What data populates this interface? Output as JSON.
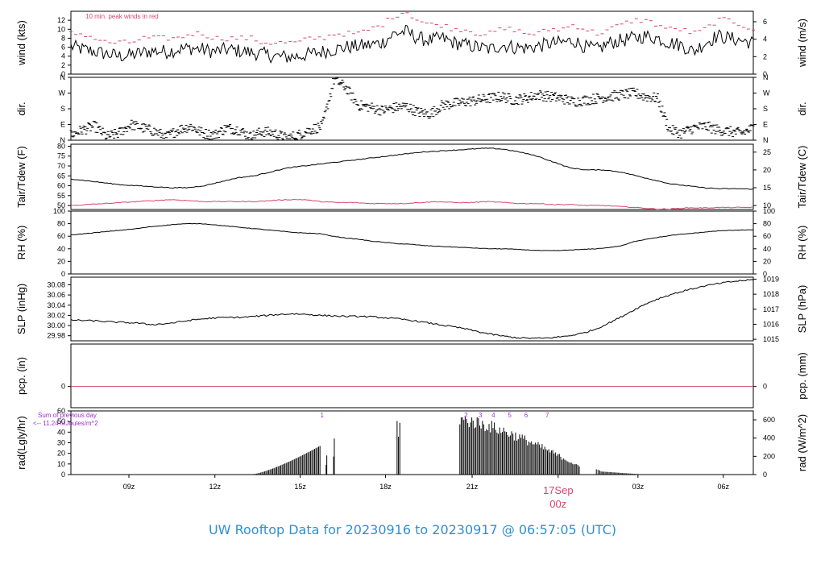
{
  "title": "UW Rooftop Data for 20230916  to  20230917 @ 06:57:05  (UTC)",
  "colors": {
    "line": "#000000",
    "red": "#d9456b",
    "purple": "#9b30d0",
    "title": "#2f8fd0"
  },
  "x_axis": {
    "ticks": [
      "09z",
      "12z",
      "15z",
      "18z",
      "21z",
      "00z",
      "03z",
      "06z"
    ],
    "date_label": "17Sep",
    "date_tick": "00z"
  },
  "chart_data": [
    {
      "type": "line",
      "name": "wind",
      "ylabel": "wind (kts)",
      "ylabel_right": "wind (m/s)",
      "yticks": [
        "0",
        "2",
        "4",
        "6",
        "8",
        "10",
        "12"
      ],
      "yticks_right": [
        "0",
        "2",
        "4",
        "6"
      ],
      "ylim": [
        0,
        14
      ],
      "annotation": "10 min. peak winds in red",
      "series": [
        {
          "values": [
            6.2,
            5.5,
            5.0,
            4.5,
            4.0,
            4.2,
            4.8,
            5.2,
            5.0,
            5.5,
            5.8,
            5.5,
            5.0,
            5.5,
            5.2,
            4.8,
            4.5,
            4.0,
            3.8,
            4.0,
            4.5,
            5.0,
            5.5,
            6.0,
            6.2,
            6.5,
            7.0,
            9.0,
            9.5,
            8.0,
            7.5,
            8.0,
            7.0,
            6.5,
            6.0,
            5.5,
            6.5,
            6.0,
            5.8,
            6.2,
            6.8,
            7.0,
            7.5,
            6.0,
            5.5,
            7.0,
            7.5,
            8.0,
            8.5,
            8.0,
            7.0,
            6.5,
            5.0,
            7.0,
            8.5,
            8.0,
            7.5,
            7.0
          ]
        },
        {
          "name": "10 min. peak winds",
          "values": [
            9,
            9,
            8,
            7,
            7,
            7,
            8,
            8,
            8,
            8,
            9,
            9,
            8,
            8,
            8,
            8,
            7,
            7,
            7,
            7,
            8,
            8,
            9,
            9,
            9,
            10,
            11,
            13,
            14,
            12,
            11,
            11,
            10,
            10,
            9,
            9,
            10,
            10,
            9,
            9,
            10,
            10,
            11,
            10,
            9,
            10,
            11,
            12,
            12,
            11,
            10,
            10,
            9,
            10,
            12,
            12,
            11,
            10
          ]
        }
      ]
    },
    {
      "type": "scatter",
      "name": "dir",
      "ylabel": "dir.",
      "ylabel_right": "dir.",
      "yticks": [
        "N",
        "E",
        "S",
        "W",
        "N"
      ],
      "yticks_right": [
        "N",
        "E",
        "S",
        "W",
        "N"
      ],
      "ylim": [
        0,
        360
      ],
      "values": [
        30,
        60,
        80,
        20,
        40,
        90,
        70,
        50,
        20,
        60,
        80,
        40,
        30,
        70,
        60,
        20,
        50,
        40,
        10,
        30,
        60,
        80,
        350,
        300,
        200,
        190,
        170,
        185,
        195,
        160,
        150,
        200,
        210,
        220,
        230,
        240,
        250,
        230,
        240,
        260,
        250,
        240,
        220,
        230,
        240,
        250,
        260,
        270,
        250,
        240,
        60,
        40,
        70,
        80,
        60,
        50,
        40,
        70
      ]
    },
    {
      "type": "line",
      "name": "temperature",
      "ylabel": "Tair/Tdew (F)",
      "ylabel_right": "Tair/Tdew (C)",
      "yticks": [
        "50",
        "55",
        "60",
        "65",
        "70",
        "75",
        "80"
      ],
      "yticks_right": [
        "10",
        "15",
        "20",
        "25"
      ],
      "ylim": [
        48,
        81
      ],
      "series": [
        {
          "name": "Tair",
          "values": [
            63.5,
            62.5,
            61.5,
            60.5,
            60,
            59.5,
            59,
            59,
            60,
            62,
            64,
            65,
            67,
            69,
            70,
            71,
            72,
            73,
            74,
            75,
            76,
            77,
            77.5,
            78,
            78.5,
            79,
            78.5,
            77,
            75,
            72,
            69,
            68,
            68,
            67,
            65,
            63,
            61,
            60,
            59,
            58.5,
            58.5,
            58.3
          ]
        },
        {
          "name": "Tdew",
          "values": [
            50,
            50.5,
            51,
            51.5,
            52,
            52.5,
            53,
            52.5,
            52,
            52,
            52,
            52,
            52.5,
            53,
            53,
            52,
            51.5,
            51.5,
            51,
            51,
            51,
            51.5,
            52,
            51.5,
            51.5,
            52,
            51.5,
            51,
            51,
            50.5,
            50.5,
            50,
            50,
            49.5,
            49,
            48.3,
            48.2,
            48.8,
            48.8,
            49,
            49,
            49.1
          ]
        }
      ]
    },
    {
      "type": "line",
      "name": "rh",
      "ylabel": "RH (%)",
      "ylabel_right": "RH (%)",
      "yticks": [
        "0",
        "20",
        "40",
        "60",
        "80",
        "100"
      ],
      "yticks_right": [
        "0",
        "20",
        "40",
        "60",
        "80",
        "100"
      ],
      "ylim": [
        0,
        100
      ],
      "series": [
        {
          "name": "RH",
          "values": [
            62,
            64,
            66,
            68,
            70,
            72,
            75,
            77,
            79,
            80,
            80,
            78,
            76,
            74,
            72,
            70,
            68,
            66,
            65,
            64,
            60,
            57,
            55,
            52,
            50,
            48,
            47,
            45,
            44,
            43,
            42,
            41,
            40,
            40,
            39,
            38,
            37,
            37,
            38,
            39,
            40,
            42,
            45,
            52,
            56,
            59,
            62,
            64,
            66,
            68,
            69,
            70,
            70
          ]
        }
      ]
    },
    {
      "type": "line",
      "name": "pressure",
      "ylabel": "SLP (inHg)",
      "ylabel_right": "SLP (hPa)",
      "yticks": [
        "29.98",
        "30.00",
        "30.02",
        "30.04",
        "30.06",
        "30.08"
      ],
      "yticks_right": [
        "1015",
        "1016",
        "1017",
        "1018",
        "1019"
      ],
      "ylim": [
        29.97,
        30.095
      ],
      "series": [
        {
          "name": "SLP",
          "values": [
            30.011,
            30.01,
            30.009,
            30.007,
            30.006,
            30.005,
            30.002,
            30.003,
            30.006,
            30.01,
            30.013,
            30.015,
            30.016,
            30.016,
            30.018,
            30.02,
            30.022,
            30.023,
            30.022,
            30.02,
            30.019,
            30.018,
            30.018,
            30.017,
            30.015,
            30.013,
            30.01,
            30.006,
            30.002,
            29.998,
            29.994,
            29.988,
            29.983,
            29.979,
            29.976,
            29.975,
            29.975,
            29.977,
            29.98,
            29.985,
            29.993,
            30.005,
            30.018,
            30.032,
            30.045,
            30.055,
            30.063,
            30.07,
            30.076,
            30.081,
            30.085,
            30.088,
            30.09
          ]
        }
      ]
    },
    {
      "type": "line",
      "name": "precip",
      "ylabel": "pcp. (in)",
      "ylabel_right": "pcp. (mm)",
      "yticks": [
        "0"
      ],
      "yticks_right": [
        "0"
      ],
      "ylim": [
        -0.5,
        1
      ],
      "series": [
        {
          "name": "pcp",
          "values": [
            0,
            0
          ]
        }
      ]
    },
    {
      "type": "bar",
      "name": "radiation",
      "ylabel": "rad(Lgly/hr)",
      "ylabel_right": "rad (W/m^2)",
      "yticks": [
        "0",
        "10",
        "20",
        "30",
        "40",
        "50",
        "60"
      ],
      "yticks_right": [
        "0",
        "200",
        "400",
        "600"
      ],
      "ylim": [
        0,
        60
      ],
      "notes": [
        "Sum of previous day",
        "<-- 11.24 MJoules/m^2"
      ],
      "markers": [
        "1",
        "2",
        "3",
        "4",
        "5",
        "6",
        "7"
      ]
    }
  ]
}
